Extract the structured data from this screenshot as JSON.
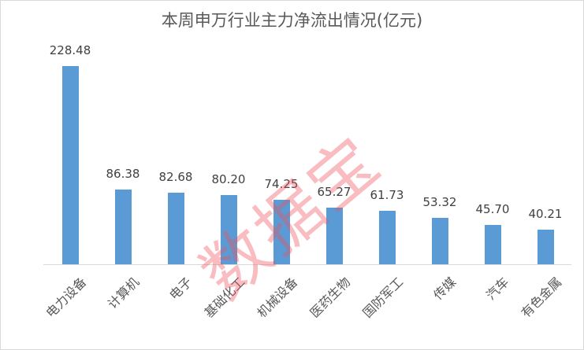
{
  "chart_data": {
    "type": "bar",
    "title": "本周申万行业主力净流出情况(亿元)",
    "categories": [
      "电力设备",
      "计算机",
      "电子",
      "基础化工",
      "机械设备",
      "医药生物",
      "国防军工",
      "传媒",
      "汽车",
      "有色金属"
    ],
    "values": [
      228.48,
      86.38,
      82.68,
      80.2,
      74.25,
      65.27,
      61.73,
      53.32,
      45.7,
      40.21
    ],
    "value_labels": [
      "228.48",
      "86.38",
      "82.68",
      "80.20",
      "74.25",
      "65.27",
      "61.73",
      "53.32",
      "45.70",
      "40.21"
    ],
    "xlabel": "",
    "ylabel": "",
    "grid": false,
    "legend": "none",
    "bar_color": "#5b9bd5"
  },
  "watermark": "数据宝"
}
